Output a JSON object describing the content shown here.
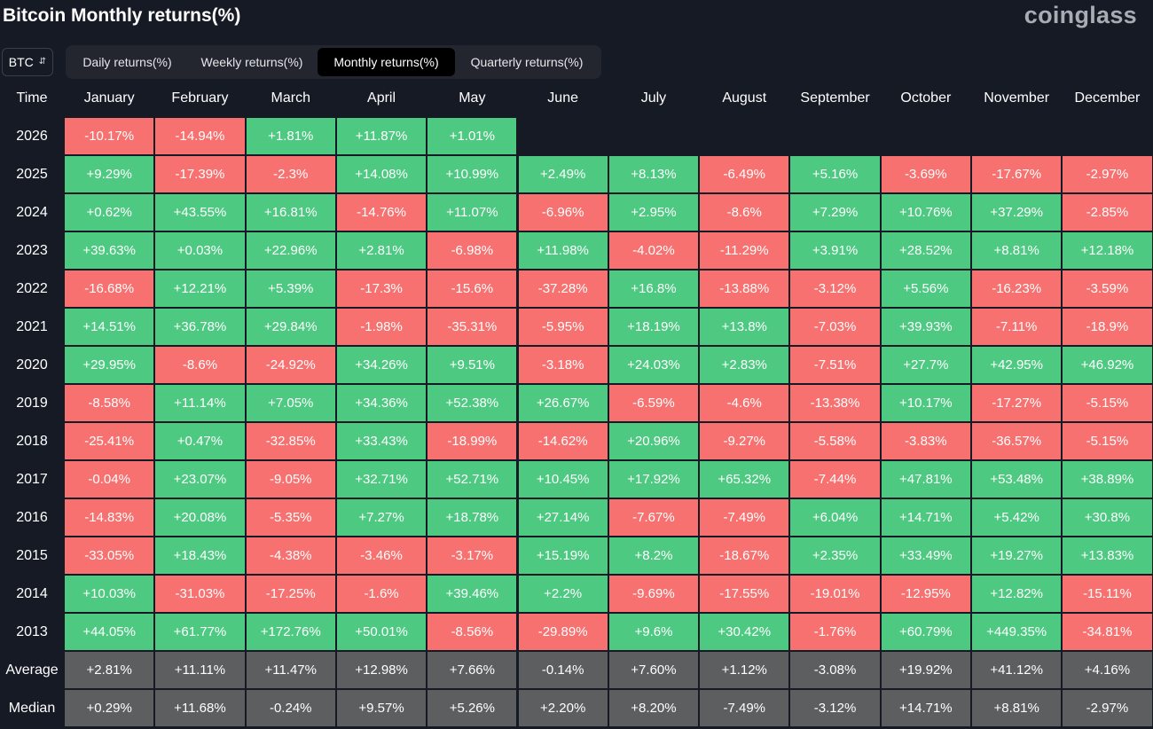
{
  "header": {
    "title": "Bitcoin Monthly returns(%)",
    "brand": "coinglass"
  },
  "asset_select": {
    "value": "BTC",
    "icon": "chevron-updown-icon"
  },
  "tabs": [
    {
      "label": "Daily returns(%)",
      "active": false
    },
    {
      "label": "Weekly returns(%)",
      "active": false
    },
    {
      "label": "Monthly returns(%)",
      "active": true
    },
    {
      "label": "Quarterly returns(%)",
      "active": false
    }
  ],
  "colors": {
    "positive": "#4dc981",
    "negative": "#f6716f",
    "summary": "#5d5e60",
    "background": "#161a25"
  },
  "table": {
    "corner_label": "Time",
    "columns": [
      "January",
      "February",
      "March",
      "April",
      "May",
      "June",
      "July",
      "August",
      "September",
      "October",
      "November",
      "December"
    ],
    "rows": [
      {
        "year": "2026",
        "values": [
          "-10.17%",
          "-14.94%",
          "+1.81%",
          "+11.87%",
          "+1.01%"
        ]
      },
      {
        "year": "2025",
        "values": [
          "+9.29%",
          "-17.39%",
          "-2.3%",
          "+14.08%",
          "+10.99%",
          "+2.49%",
          "+8.13%",
          "-6.49%",
          "+5.16%",
          "-3.69%",
          "-17.67%",
          "-2.97%"
        ]
      },
      {
        "year": "2024",
        "values": [
          "+0.62%",
          "+43.55%",
          "+16.81%",
          "-14.76%",
          "+11.07%",
          "-6.96%",
          "+2.95%",
          "-8.6%",
          "+7.29%",
          "+10.76%",
          "+37.29%",
          "-2.85%"
        ]
      },
      {
        "year": "2023",
        "values": [
          "+39.63%",
          "+0.03%",
          "+22.96%",
          "+2.81%",
          "-6.98%",
          "+11.98%",
          "-4.02%",
          "-11.29%",
          "+3.91%",
          "+28.52%",
          "+8.81%",
          "+12.18%"
        ]
      },
      {
        "year": "2022",
        "values": [
          "-16.68%",
          "+12.21%",
          "+5.39%",
          "-17.3%",
          "-15.6%",
          "-37.28%",
          "+16.8%",
          "-13.88%",
          "-3.12%",
          "+5.56%",
          "-16.23%",
          "-3.59%"
        ]
      },
      {
        "year": "2021",
        "values": [
          "+14.51%",
          "+36.78%",
          "+29.84%",
          "-1.98%",
          "-35.31%",
          "-5.95%",
          "+18.19%",
          "+13.8%",
          "-7.03%",
          "+39.93%",
          "-7.11%",
          "-18.9%"
        ]
      },
      {
        "year": "2020",
        "values": [
          "+29.95%",
          "-8.6%",
          "-24.92%",
          "+34.26%",
          "+9.51%",
          "-3.18%",
          "+24.03%",
          "+2.83%",
          "-7.51%",
          "+27.7%",
          "+42.95%",
          "+46.92%"
        ]
      },
      {
        "year": "2019",
        "values": [
          "-8.58%",
          "+11.14%",
          "+7.05%",
          "+34.36%",
          "+52.38%",
          "+26.67%",
          "-6.59%",
          "-4.6%",
          "-13.38%",
          "+10.17%",
          "-17.27%",
          "-5.15%"
        ]
      },
      {
        "year": "2018",
        "values": [
          "-25.41%",
          "+0.47%",
          "-32.85%",
          "+33.43%",
          "-18.99%",
          "-14.62%",
          "+20.96%",
          "-9.27%",
          "-5.58%",
          "-3.83%",
          "-36.57%",
          "-5.15%"
        ]
      },
      {
        "year": "2017",
        "values": [
          "-0.04%",
          "+23.07%",
          "-9.05%",
          "+32.71%",
          "+52.71%",
          "+10.45%",
          "+17.92%",
          "+65.32%",
          "-7.44%",
          "+47.81%",
          "+53.48%",
          "+38.89%"
        ]
      },
      {
        "year": "2016",
        "values": [
          "-14.83%",
          "+20.08%",
          "-5.35%",
          "+7.27%",
          "+18.78%",
          "+27.14%",
          "-7.67%",
          "-7.49%",
          "+6.04%",
          "+14.71%",
          "+5.42%",
          "+30.8%"
        ]
      },
      {
        "year": "2015",
        "values": [
          "-33.05%",
          "+18.43%",
          "-4.38%",
          "-3.46%",
          "-3.17%",
          "+15.19%",
          "+8.2%",
          "-18.67%",
          "+2.35%",
          "+33.49%",
          "+19.27%",
          "+13.83%"
        ]
      },
      {
        "year": "2014",
        "values": [
          "+10.03%",
          "-31.03%",
          "-17.25%",
          "-1.6%",
          "+39.46%",
          "+2.2%",
          "-9.69%",
          "-17.55%",
          "-19.01%",
          "-12.95%",
          "+12.82%",
          "-15.11%"
        ]
      },
      {
        "year": "2013",
        "values": [
          "+44.05%",
          "+61.77%",
          "+172.76%",
          "+50.01%",
          "-8.56%",
          "-29.89%",
          "+9.6%",
          "+30.42%",
          "-1.76%",
          "+60.79%",
          "+449.35%",
          "-34.81%"
        ]
      }
    ],
    "summary_rows": [
      {
        "label": "Average",
        "values": [
          "+2.81%",
          "+11.11%",
          "+11.47%",
          "+12.98%",
          "+7.66%",
          "-0.14%",
          "+7.60%",
          "+1.12%",
          "-3.08%",
          "+19.92%",
          "+41.12%",
          "+4.16%"
        ]
      },
      {
        "label": "Median",
        "values": [
          "+0.29%",
          "+11.68%",
          "-0.24%",
          "+9.57%",
          "+5.26%",
          "+2.20%",
          "+8.20%",
          "-7.49%",
          "-3.12%",
          "+14.71%",
          "+8.81%",
          "-2.97%"
        ]
      }
    ]
  }
}
